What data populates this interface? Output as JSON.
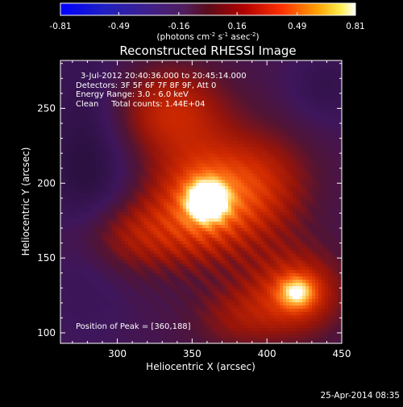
{
  "chart_data": {
    "type": "heatmap",
    "title": "Reconstructed RHESSI Image",
    "xlabel": "Heliocentric X (arcsec)",
    "ylabel": "Heliocentric Y (arcsec)",
    "xlim": [
      262,
      450
    ],
    "ylim": [
      93,
      282
    ],
    "x_ticks": [
      300,
      350,
      400,
      450
    ],
    "y_ticks": [
      100,
      150,
      200,
      250
    ],
    "grid": false,
    "colorbar": {
      "ticks": [
        "-0.81",
        "-0.49",
        "-0.16",
        "0.16",
        "0.49",
        "0.81"
      ],
      "label_text": "(photons cm",
      "label_exp1": "-2",
      "label_mid": " s",
      "label_exp2": "-1",
      "label_end": " asec",
      "label_exp3": "-2",
      "label_close": ")",
      "range": [
        -0.81,
        0.81
      ]
    },
    "annotations": [
      "3-Jul-2012 20:40:36.000 to 20:45:14.000",
      "Detectors: 3F 5F 6F 7F 8F 9F, Att 0",
      "Energy Range: 3.0 - 6.0 keV",
      "Clean     Total counts: 1.44E+04"
    ],
    "peak_label": "Position of Peak = [360,188]",
    "sources": [
      {
        "x": 360,
        "y": 188,
        "peak": 0.81
      },
      {
        "x": 420,
        "y": 127,
        "peak": 0.44
      }
    ],
    "timestamp": "25-Apr-2014 08:35"
  }
}
